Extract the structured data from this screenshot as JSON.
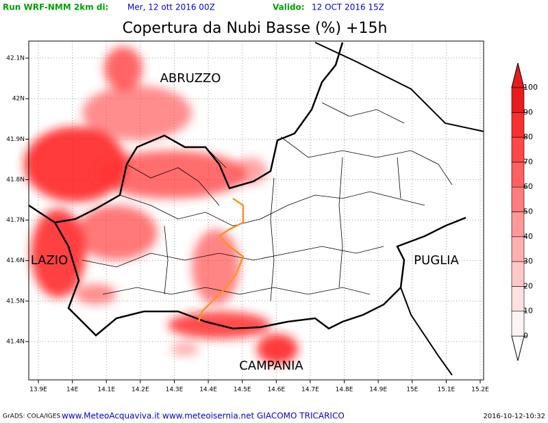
{
  "header": {
    "run_label": "Run WRF-NMM 2km di:",
    "run_date": "Mer, 12 ott 2016 00Z",
    "valid_label": "Valido:",
    "valid_date": "12 OCT 2016 15Z"
  },
  "title": "Copertura da Nubi Basse (%) +15h",
  "map": {
    "lon_ticks": [
      {
        "value": 13.9,
        "label": "13.9E"
      },
      {
        "value": 14,
        "label": "14E"
      },
      {
        "value": 14.1,
        "label": "14.1E"
      },
      {
        "value": 14.2,
        "label": "14.2E"
      },
      {
        "value": 14.3,
        "label": "14.3E"
      },
      {
        "value": 14.4,
        "label": "14.4E"
      },
      {
        "value": 14.5,
        "label": "14.5E"
      },
      {
        "value": 14.6,
        "label": "14.6E"
      },
      {
        "value": 14.7,
        "label": "14.7E"
      },
      {
        "value": 14.8,
        "label": "14.8E"
      },
      {
        "value": 14.9,
        "label": "14.9E"
      },
      {
        "value": 15,
        "label": "15E"
      },
      {
        "value": 15.1,
        "label": "15.1E"
      },
      {
        "value": 15.2,
        "label": "15.2E"
      }
    ],
    "lat_ticks": [
      {
        "value": 42.1,
        "label": "42.1N"
      },
      {
        "value": 42,
        "label": "42N"
      },
      {
        "value": 41.9,
        "label": "41.9N"
      },
      {
        "value": 41.8,
        "label": "41.8N"
      },
      {
        "value": 41.7,
        "label": "41.7N"
      },
      {
        "value": 41.6,
        "label": "41.6N"
      },
      {
        "value": 41.5,
        "label": "41.5N"
      },
      {
        "value": 41.4,
        "label": "41.4N"
      }
    ],
    "regions": [
      "ABRUZZO",
      "LAZIO",
      "PUGLIA",
      "CAMPANIA"
    ]
  },
  "colorbar": {
    "range": [
      0,
      100
    ],
    "ticks": [
      0,
      10,
      20,
      30,
      40,
      50,
      60,
      70,
      80,
      90,
      100
    ],
    "colors": [
      "#fff4f4",
      "#ffe0e0",
      "#ffc8c8",
      "#ffb0b0",
      "#ff9898",
      "#ff7c7c",
      "#ff6060",
      "#ff4848",
      "#f83030",
      "#e81c1c"
    ]
  },
  "footer": {
    "left": "GrADS: COLA/IGES",
    "center": "www.MeteoAcquaviva.it www.meteoisernia.net GIACOMO TRICARICO",
    "right": "2016-10-12-10:32"
  }
}
